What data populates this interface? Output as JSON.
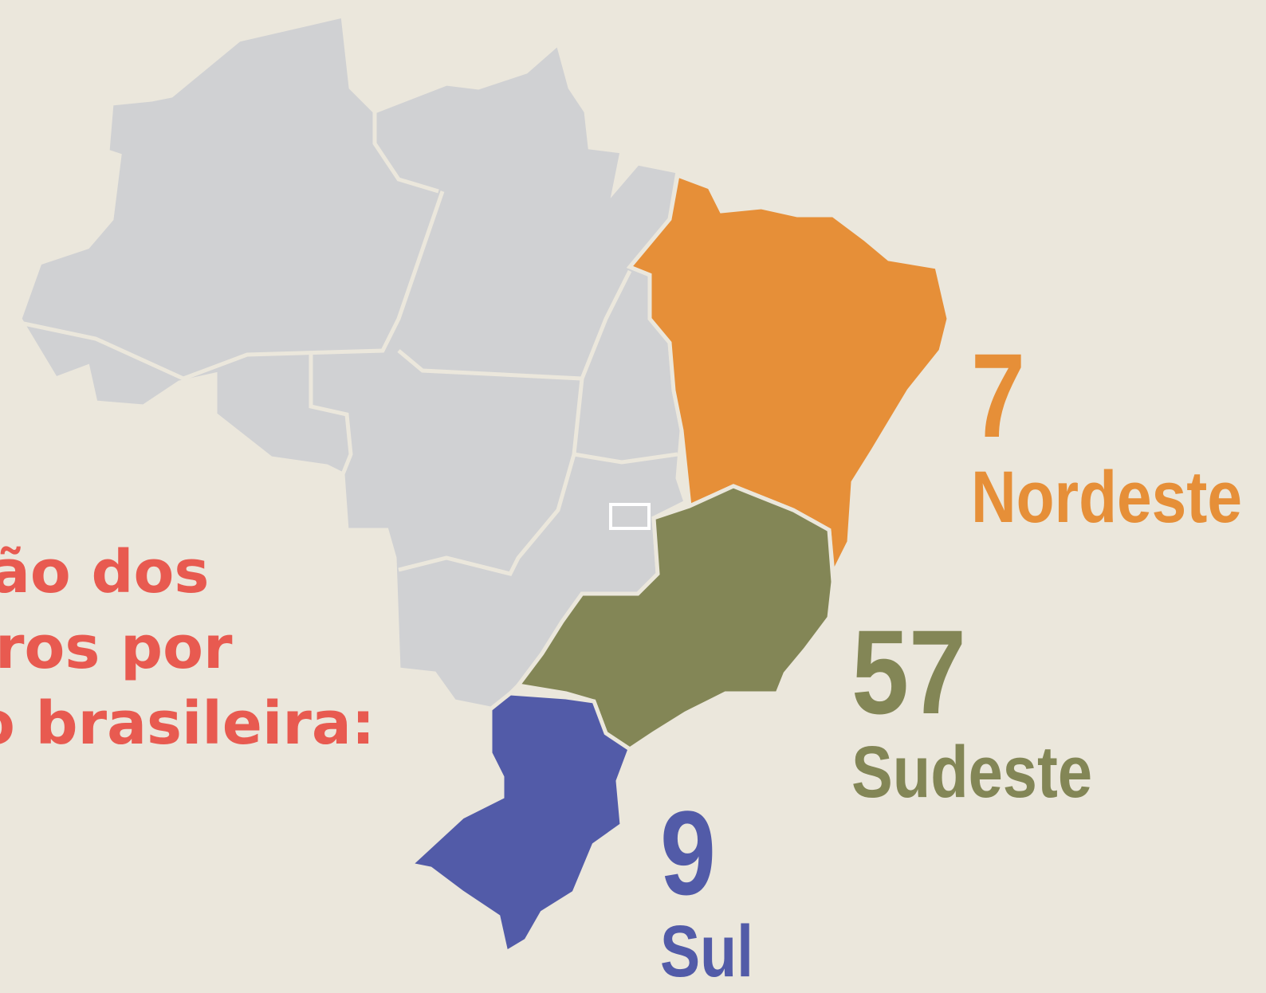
{
  "title_lines": [
    "ão dos",
    "ros por",
    "o brasileira:"
  ],
  "regions": [
    {
      "name": "Nordeste",
      "value": 7,
      "color": "#e68f38"
    },
    {
      "name": "Sudeste",
      "value": 57,
      "color": "#838656"
    },
    {
      "name": "Sul",
      "value": 9,
      "color": "#525ba8"
    }
  ]
}
